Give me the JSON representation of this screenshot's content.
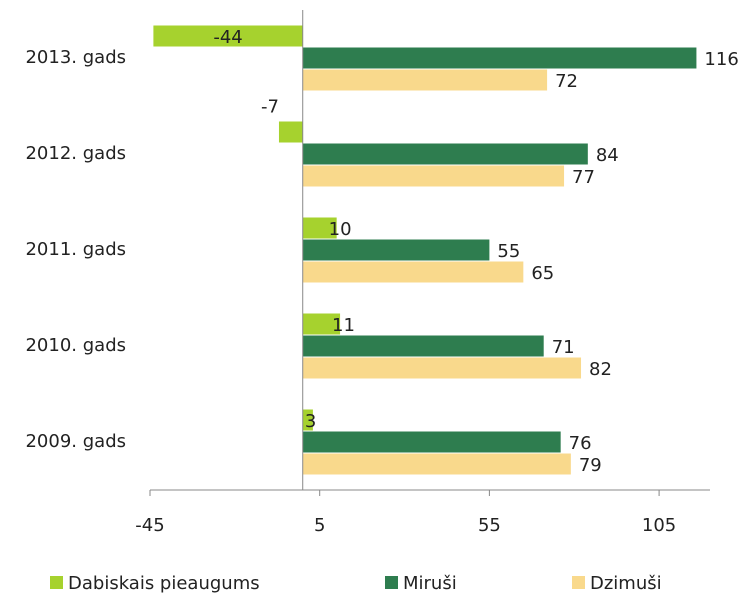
{
  "chart_data": {
    "type": "bar",
    "orientation": "horizontal",
    "categories": [
      "2013. gads",
      "2012. gads",
      "2011. gads",
      "2010. gads",
      "2009. gads"
    ],
    "series": [
      {
        "name": "Dabiskais pieaugums",
        "color": "#a6d22e",
        "values": [
          -44,
          -7,
          10,
          11,
          3
        ]
      },
      {
        "name": "Miruši",
        "color": "#2e7d4f",
        "values": [
          116,
          84,
          55,
          71,
          76
        ]
      },
      {
        "name": "Dzimuši",
        "color": "#f9d98c",
        "values": [
          72,
          77,
          65,
          82,
          79
        ]
      }
    ],
    "xlim": [
      -45,
      120
    ],
    "xticks": [
      -45,
      5,
      55,
      105
    ],
    "grid": false,
    "legend_position": "bottom"
  }
}
